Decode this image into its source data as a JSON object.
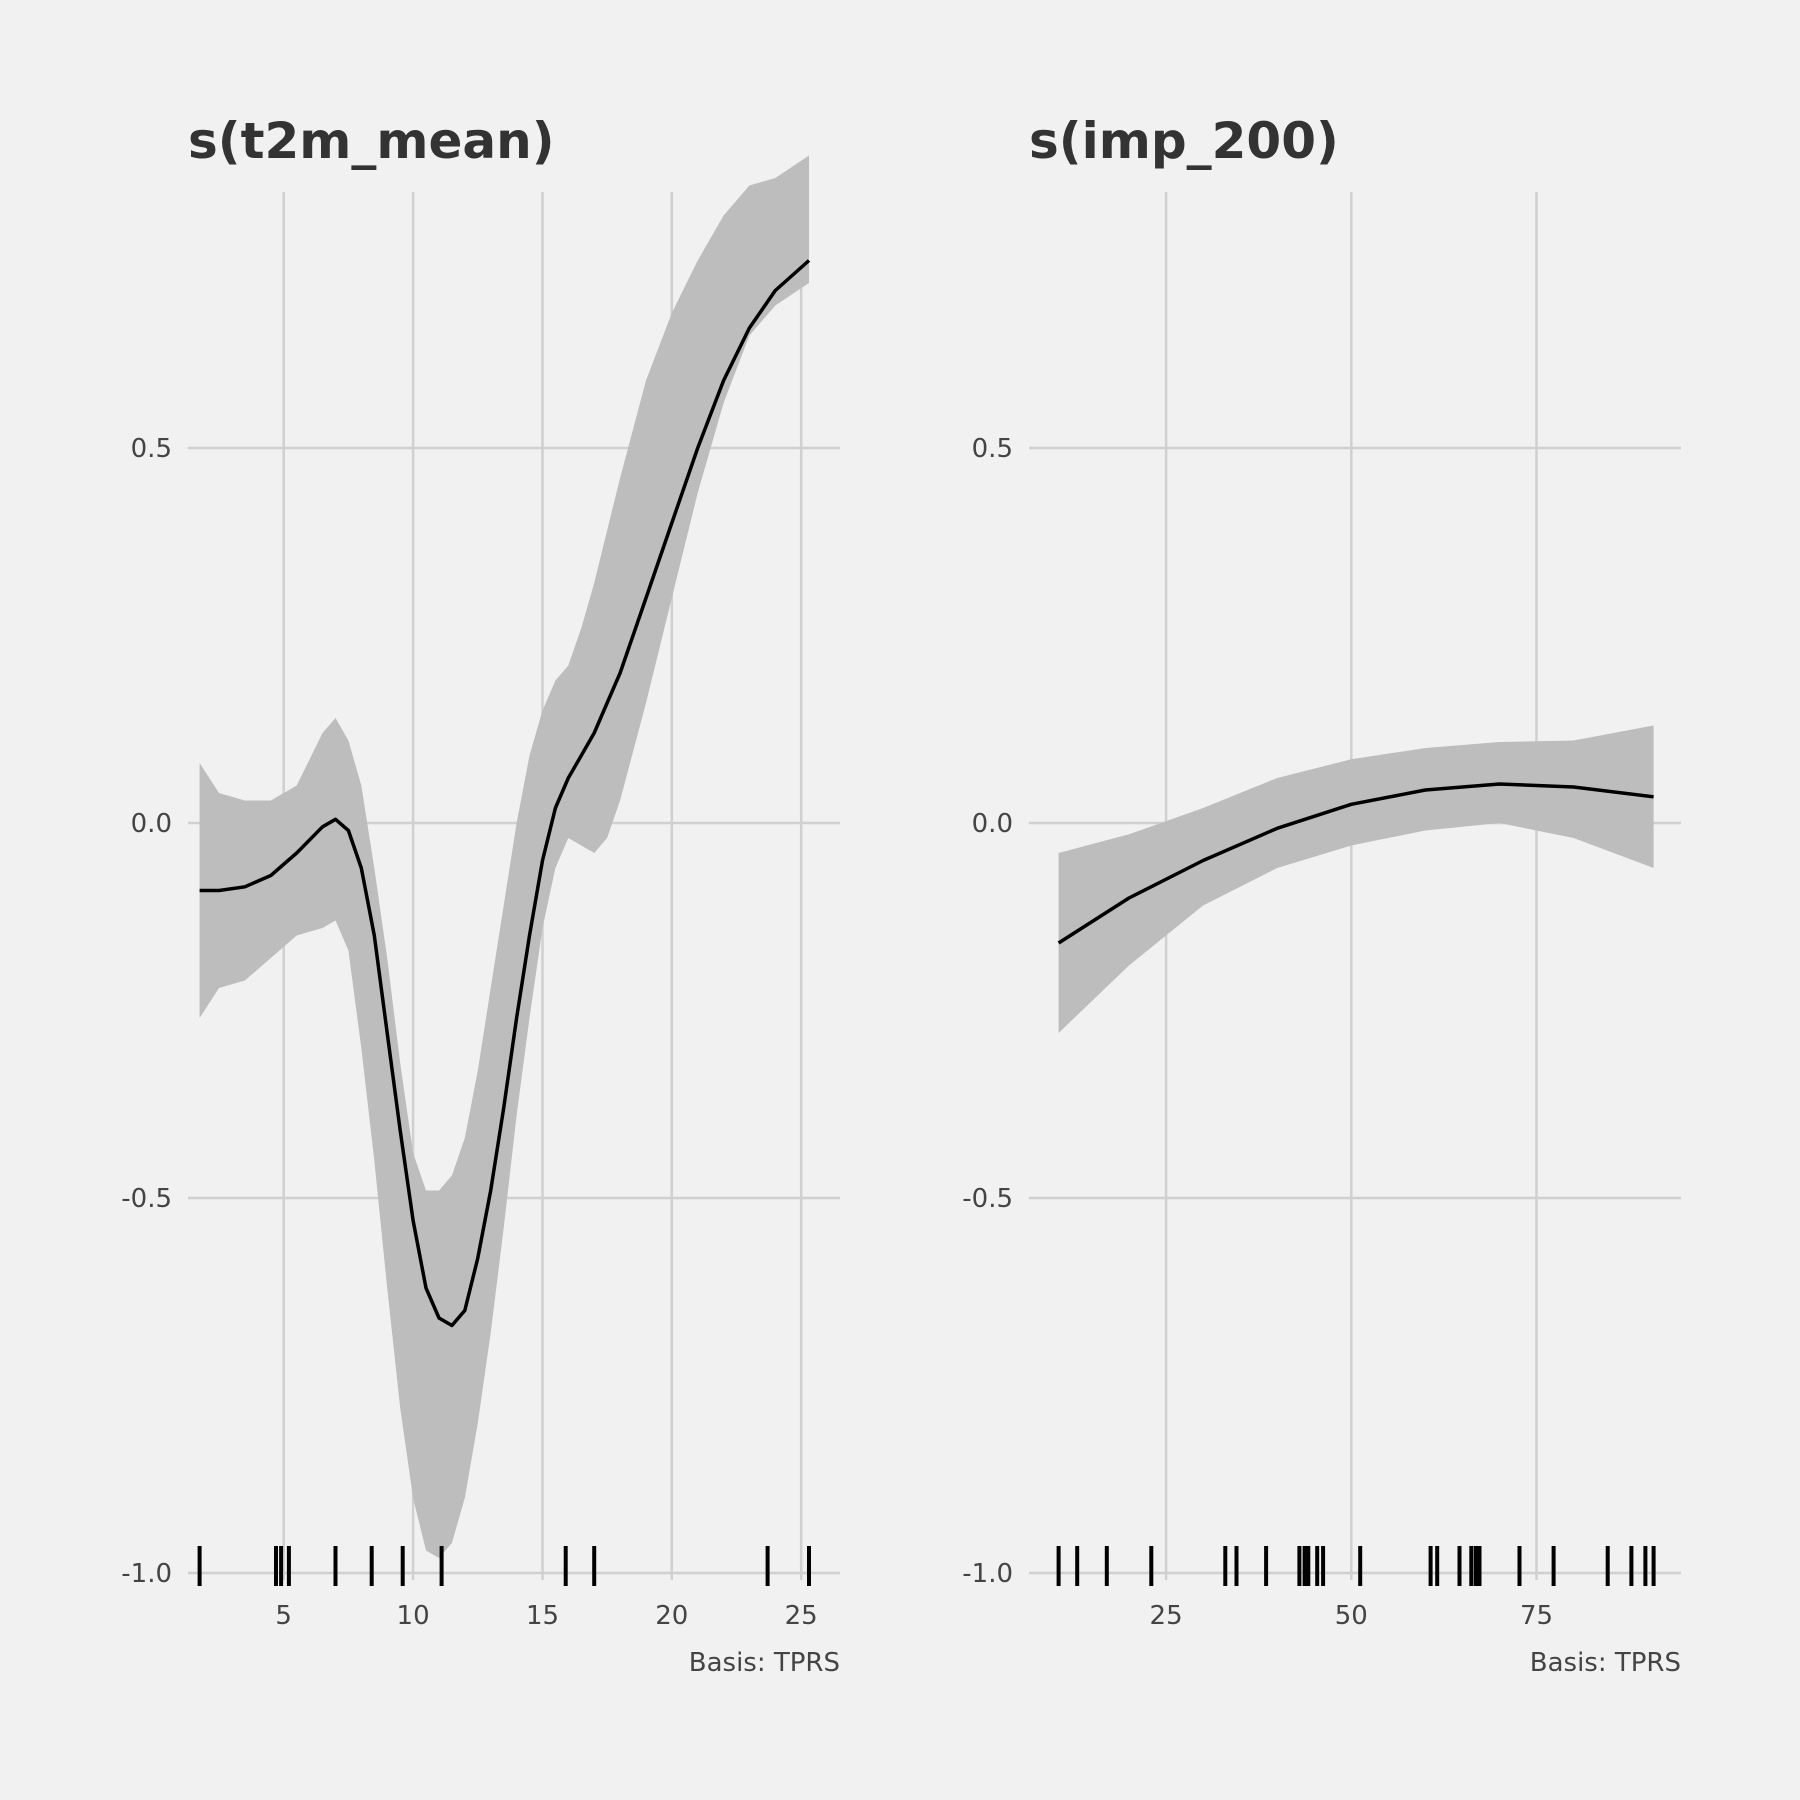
{
  "chart_data": [
    {
      "type": "line",
      "title": "s(t2m_mean)",
      "caption": "Basis: TPRS",
      "xlabel": "",
      "ylabel": "",
      "xlim": [
        1.3,
        26.5
      ],
      "ylim": [
        -1.0,
        0.5
      ],
      "x_ticks": [
        5,
        10,
        15,
        20,
        25
      ],
      "x_tick_labels": [
        "5",
        "10",
        "15",
        "20",
        "25"
      ],
      "y_ticks": [
        -1.0,
        -0.5,
        0.0,
        0.5
      ],
      "y_tick_labels": [
        "-1.0",
        "-0.5",
        "0.0",
        "0.5"
      ],
      "grid": true,
      "fit": {
        "x": [
          1.75,
          2.5,
          3.5,
          4.5,
          5.5,
          6.5,
          7.0,
          7.5,
          8.0,
          8.5,
          9.0,
          9.5,
          10.0,
          10.5,
          11.0,
          11.5,
          12.0,
          12.5,
          13.0,
          13.5,
          14.0,
          14.5,
          15.0,
          15.5,
          16.0,
          16.5,
          17.0,
          17.5,
          18.0,
          19.0,
          20.0,
          21.0,
          22.0,
          23.0,
          24.0,
          25.3
        ],
        "y": [
          -0.09,
          -0.09,
          -0.085,
          -0.07,
          -0.04,
          -0.005,
          0.005,
          -0.01,
          -0.06,
          -0.15,
          -0.28,
          -0.41,
          -0.53,
          -0.62,
          -0.66,
          -0.67,
          -0.65,
          -0.58,
          -0.49,
          -0.38,
          -0.26,
          -0.15,
          -0.05,
          0.02,
          0.06,
          0.09,
          0.12,
          0.16,
          0.2,
          0.3,
          0.4,
          0.5,
          0.59,
          0.66,
          0.71,
          0.75
        ]
      },
      "band": {
        "x": [
          1.75,
          2.5,
          3.5,
          4.5,
          5.5,
          6.5,
          7.0,
          7.5,
          8.0,
          8.5,
          9.0,
          9.5,
          10.0,
          10.5,
          11.0,
          11.5,
          12.0,
          12.5,
          13.0,
          13.5,
          14.0,
          14.5,
          15.0,
          15.5,
          16.0,
          16.5,
          17.0,
          17.5,
          18.0,
          19.0,
          20.0,
          21.0,
          22.0,
          23.0,
          24.0,
          25.3
        ],
        "lower": [
          -0.26,
          -0.22,
          -0.21,
          -0.18,
          -0.15,
          -0.14,
          -0.13,
          -0.17,
          -0.3,
          -0.45,
          -0.62,
          -0.78,
          -0.9,
          -0.97,
          -0.98,
          -0.96,
          -0.9,
          -0.8,
          -0.68,
          -0.54,
          -0.39,
          -0.26,
          -0.14,
          -0.06,
          -0.02,
          -0.03,
          -0.04,
          -0.02,
          0.03,
          0.16,
          0.3,
          0.44,
          0.56,
          0.65,
          0.69,
          0.72
        ],
        "upper": [
          0.08,
          0.04,
          0.03,
          0.03,
          0.05,
          0.12,
          0.14,
          0.11,
          0.05,
          -0.06,
          -0.18,
          -0.32,
          -0.44,
          -0.49,
          -0.49,
          -0.47,
          -0.42,
          -0.33,
          -0.22,
          -0.11,
          0.0,
          0.09,
          0.15,
          0.19,
          0.21,
          0.26,
          0.32,
          0.39,
          0.46,
          0.59,
          0.68,
          0.75,
          0.81,
          0.85,
          0.86,
          0.89
        ]
      },
      "rug": [
        1.75,
        4.7,
        4.9,
        5.2,
        7.0,
        8.4,
        9.6,
        11.1,
        15.9,
        17.0,
        23.7,
        25.3
      ]
    },
    {
      "type": "line",
      "title": "s(imp_200)",
      "caption": "Basis: TPRS",
      "xlabel": "",
      "ylabel": "",
      "xlim": [
        6.5,
        94.5
      ],
      "ylim": [
        -1.0,
        0.5
      ],
      "x_ticks": [
        25,
        50,
        75
      ],
      "x_tick_labels": [
        "25",
        "50",
        "75"
      ],
      "y_ticks": [
        -1.0,
        -0.5,
        0.0,
        0.5
      ],
      "y_tick_labels": [
        "-1.0",
        "-0.5",
        "0.0",
        "0.5"
      ],
      "grid": true,
      "fit": {
        "x": [
          10.5,
          20,
          30,
          40,
          50,
          60,
          70,
          80,
          90.8
        ],
        "y": [
          -0.16,
          -0.1,
          -0.05,
          -0.007,
          0.025,
          0.044,
          0.052,
          0.048,
          0.035
        ]
      },
      "band": {
        "x": [
          10.5,
          20,
          30,
          40,
          50,
          60,
          70,
          80,
          90.8
        ],
        "lower": [
          -0.28,
          -0.19,
          -0.11,
          -0.06,
          -0.03,
          -0.01,
          0.0,
          -0.02,
          -0.06
        ],
        "upper": [
          -0.04,
          -0.015,
          0.02,
          0.06,
          0.085,
          0.1,
          0.108,
          0.11,
          0.13
        ]
      },
      "rug": [
        10.5,
        13,
        17,
        23,
        33,
        34.5,
        38.5,
        43,
        43.7,
        44.2,
        45.4,
        46.2,
        51.2,
        60.7,
        61.6,
        64.6,
        66.2,
        66.8,
        67.3,
        72.7,
        77.3,
        84.6,
        87.8,
        89.7,
        90.8
      ]
    }
  ]
}
